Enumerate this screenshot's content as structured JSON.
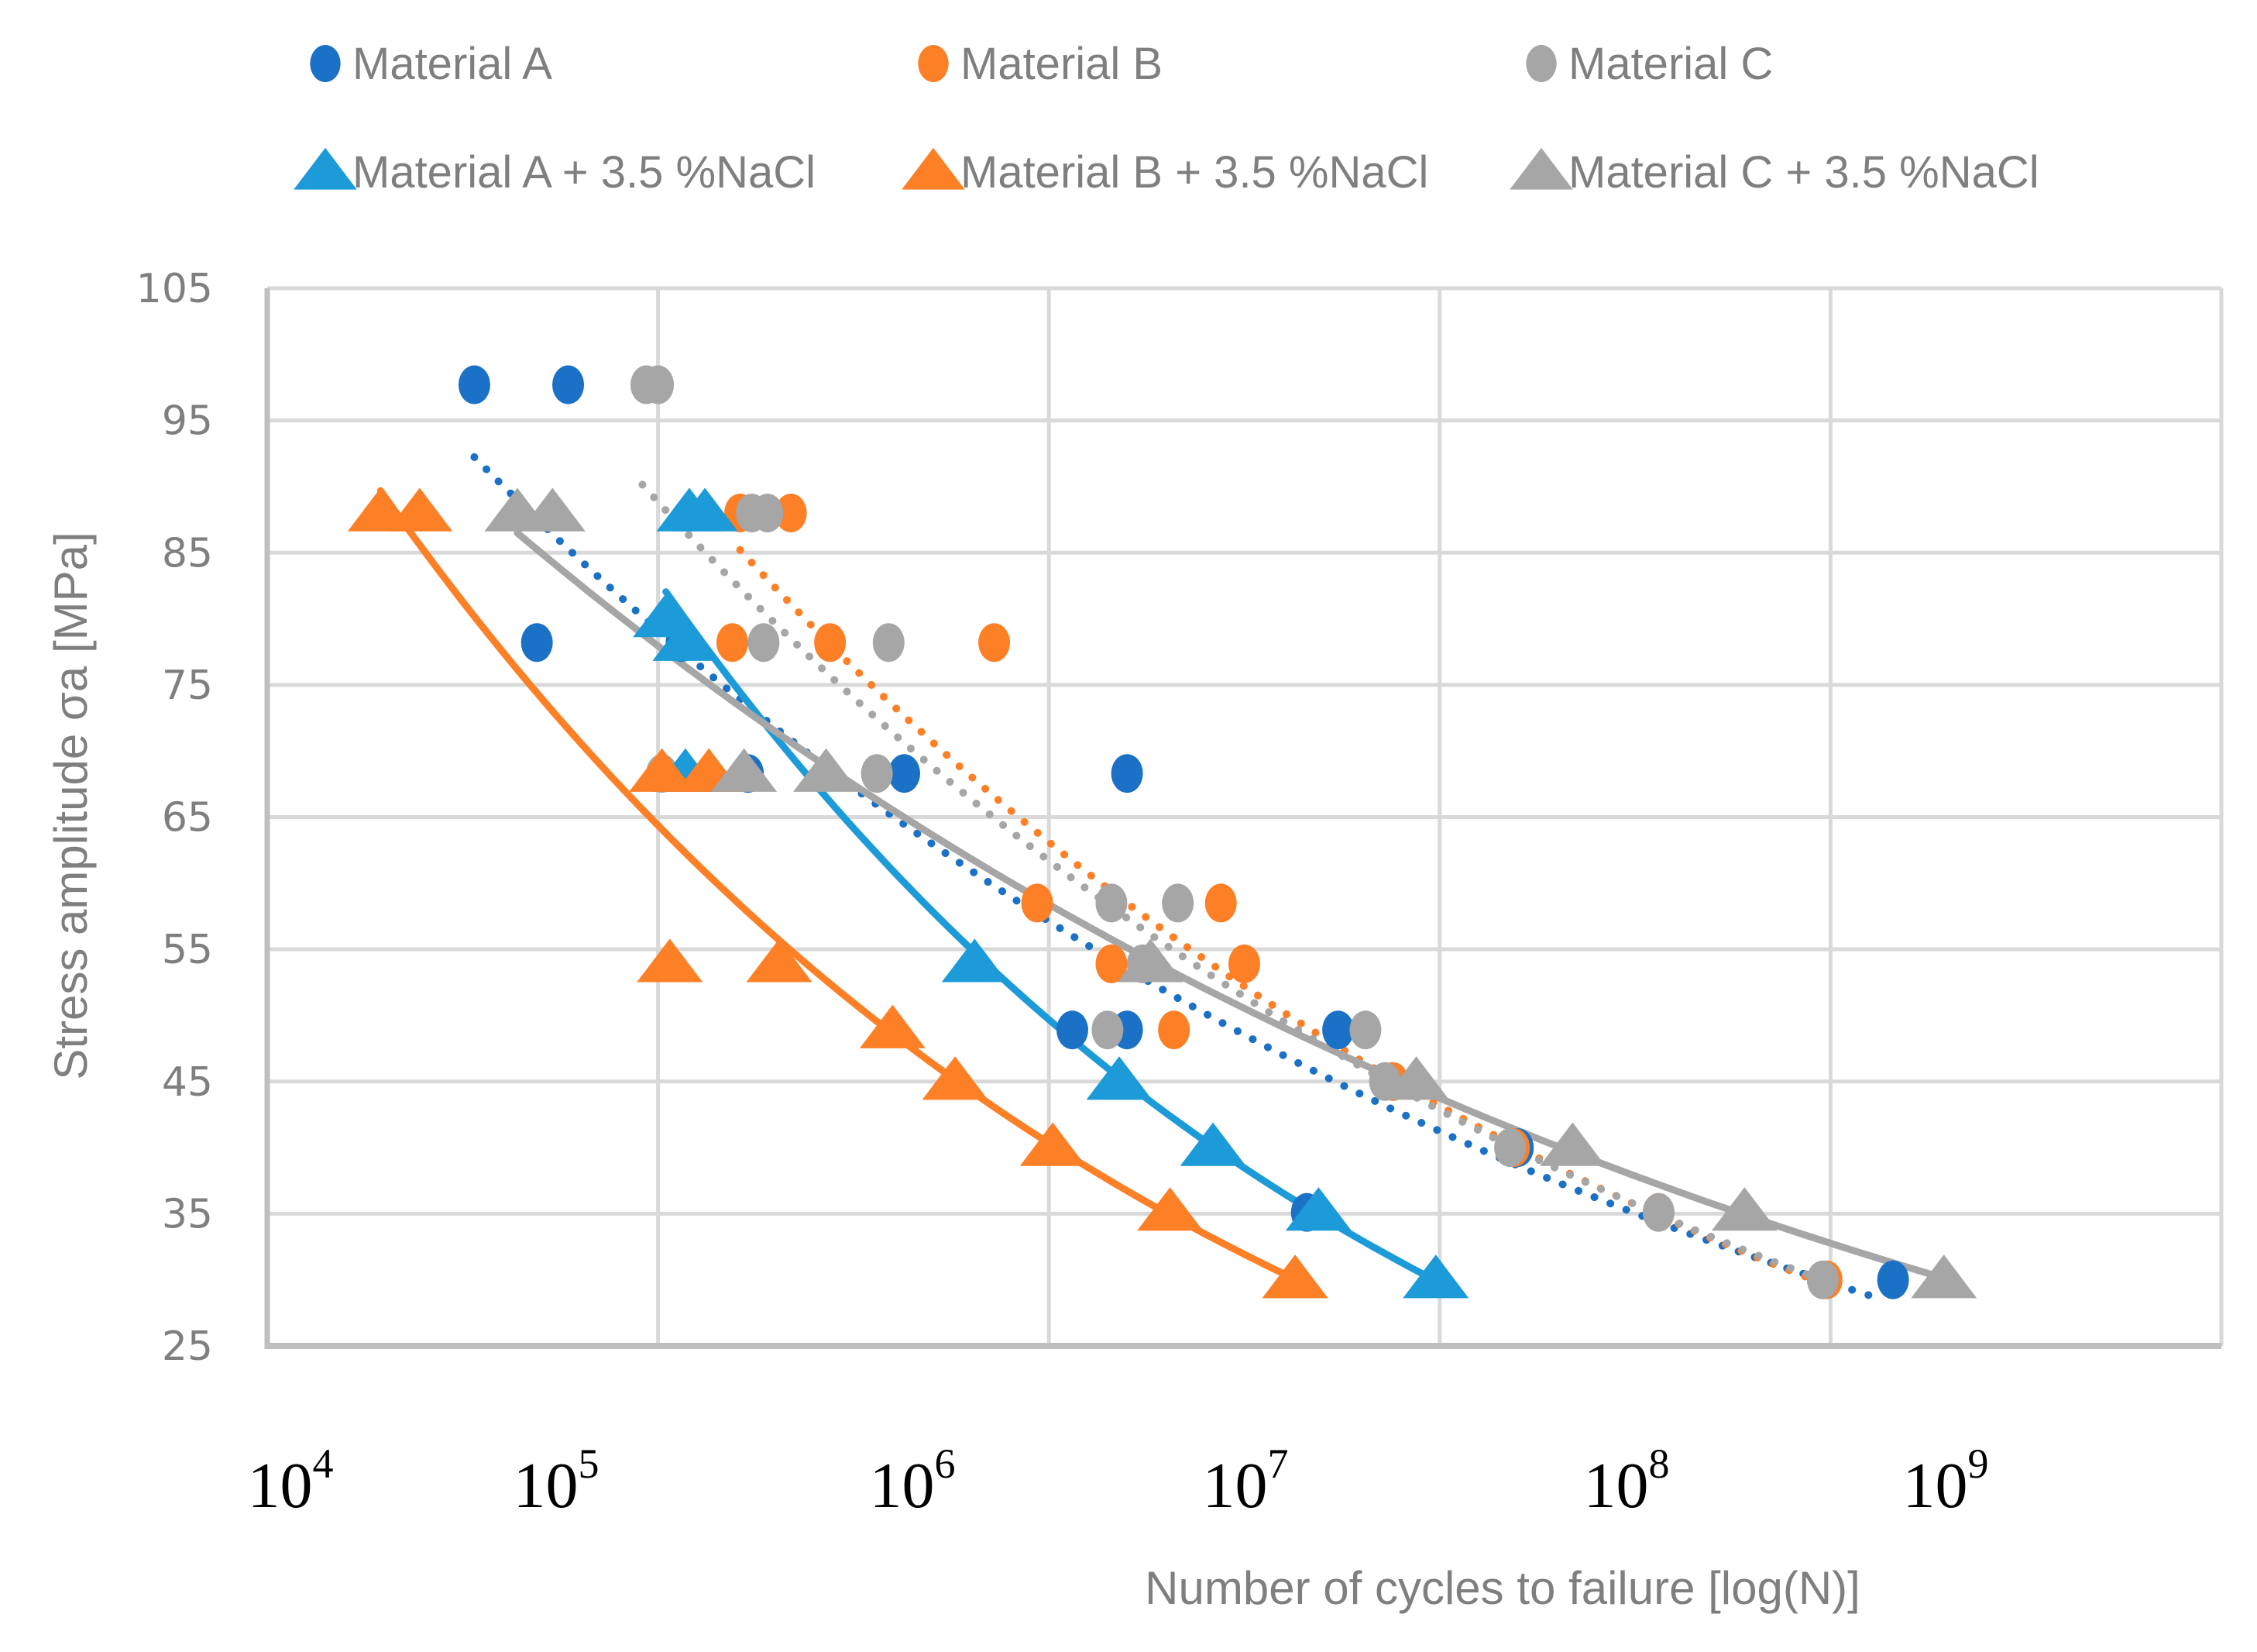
{
  "chart_data": {
    "type": "scatter",
    "title": "",
    "xlabel": "Number of cycles to failure  [log(N)]",
    "ylabel": "Stress amplitude  σa  [MPa]",
    "x_scale": "log10",
    "xlim_log10": [
      4,
      9
    ],
    "ylim": [
      25,
      105
    ],
    "grid": true,
    "legend_position": "top",
    "y_ticks": [
      105,
      95,
      85,
      75,
      65,
      55,
      45,
      35,
      25
    ],
    "x_tick_labels": [
      {
        "base": "10",
        "exp": "4"
      },
      {
        "base": "10",
        "exp": "5"
      },
      {
        "base": "10",
        "exp": "6"
      },
      {
        "base": "10",
        "exp": "7"
      },
      {
        "base": "10",
        "exp": "8"
      },
      {
        "base": "10",
        "exp": "9"
      }
    ],
    "series": [
      {
        "name": "Material A",
        "marker": "circle",
        "color": "#1a71c5",
        "trendline": "dotted",
        "points_log10N_stress": [
          [
            4.53,
            97.7
          ],
          [
            4.77,
            97.7
          ],
          [
            4.69,
            78.2
          ],
          [
            5.06,
            78.2
          ],
          [
            5.23,
            68.3
          ],
          [
            5.63,
            68.3
          ],
          [
            6.2,
            68.3
          ],
          [
            6.06,
            48.9
          ],
          [
            6.2,
            48.9
          ],
          [
            6.74,
            48.9
          ],
          [
            6.66,
            35.1
          ],
          [
            7.2,
            40.0
          ],
          [
            8.16,
            30.0
          ]
        ],
        "trend_range_log10N": [
          4.53,
          8.13
        ]
      },
      {
        "name": "Material B",
        "marker": "circle",
        "color": "#fd7f26",
        "trendline": "dotted",
        "points_log10N_stress": [
          [
            5.21,
            88.0
          ],
          [
            5.34,
            88.0
          ],
          [
            5.19,
            78.2
          ],
          [
            5.44,
            78.2
          ],
          [
            5.86,
            78.2
          ],
          [
            5.97,
            58.5
          ],
          [
            6.44,
            58.5
          ],
          [
            6.16,
            53.9
          ],
          [
            6.5,
            53.9
          ],
          [
            6.32,
            48.9
          ],
          [
            6.88,
            45.0
          ],
          [
            7.19,
            40.0
          ],
          [
            7.56,
            35.1
          ],
          [
            7.99,
            30.0
          ]
        ],
        "trend_range_log10N": [
          5.21,
          7.99
        ]
      },
      {
        "name": "Material C",
        "marker": "circle",
        "color": "#a6a6a6",
        "trendline": "dotted",
        "points_log10N_stress": [
          [
            4.97,
            97.7
          ],
          [
            5.0,
            97.7
          ],
          [
            5.24,
            88.0
          ],
          [
            5.28,
            88.0
          ],
          [
            5.27,
            78.2
          ],
          [
            5.59,
            78.2
          ],
          [
            5.01,
            68.3
          ],
          [
            5.56,
            68.3
          ],
          [
            6.16,
            58.5
          ],
          [
            6.33,
            58.5
          ],
          [
            6.24,
            53.9
          ],
          [
            6.15,
            48.9
          ],
          [
            6.81,
            48.9
          ],
          [
            6.86,
            45.0
          ],
          [
            7.18,
            40.0
          ],
          [
            7.56,
            35.1
          ],
          [
            7.98,
            30.0
          ]
        ],
        "trend_range_log10N": [
          4.96,
          7.98
        ]
      },
      {
        "name": "Material A + 3.5 %NaCl",
        "marker": "triangle",
        "color": "#1d9bd8",
        "trendline": "solid",
        "points_log10N_stress": [
          [
            5.08,
            88.0
          ],
          [
            5.12,
            88.0
          ],
          [
            5.02,
            80.0
          ],
          [
            5.07,
            78.2
          ],
          [
            5.07,
            68.3
          ],
          [
            5.81,
            53.9
          ],
          [
            6.18,
            45.0
          ],
          [
            6.42,
            40.0
          ],
          [
            6.69,
            35.1
          ],
          [
            6.99,
            30.0
          ]
        ],
        "trend_range_log10N": [
          5.02,
          6.99
        ]
      },
      {
        "name": "Material B + 3.5 %NaCl",
        "marker": "triangle",
        "color": "#fd7f26",
        "trendline": "solid",
        "points_log10N_stress": [
          [
            4.29,
            88.0
          ],
          [
            4.39,
            88.0
          ],
          [
            5.01,
            68.3
          ],
          [
            5.13,
            68.3
          ],
          [
            5.03,
            53.9
          ],
          [
            5.31,
            53.9
          ],
          [
            5.6,
            48.9
          ],
          [
            5.76,
            45.0
          ],
          [
            6.01,
            40.0
          ],
          [
            6.31,
            35.1
          ],
          [
            6.63,
            30.0
          ]
        ],
        "trend_range_log10N": [
          4.29,
          6.63
        ]
      },
      {
        "name": "Material C + 3.5 %NaCl",
        "marker": "triangle",
        "color": "#a6a6a6",
        "trendline": "solid",
        "points_log10N_stress": [
          [
            4.64,
            88.0
          ],
          [
            4.73,
            88.0
          ],
          [
            5.22,
            68.3
          ],
          [
            5.43,
            68.3
          ],
          [
            6.26,
            53.9
          ],
          [
            6.94,
            45.0
          ],
          [
            7.34,
            40.0
          ],
          [
            7.78,
            35.1
          ],
          [
            8.29,
            30.0
          ]
        ],
        "trend_range_log10N": [
          4.64,
          8.29
        ]
      }
    ]
  },
  "legend": {
    "items": [
      {
        "label": "Material A",
        "marker": "circle",
        "color": "#1a71c5"
      },
      {
        "label": "Material B",
        "marker": "circle",
        "color": "#fd7f26"
      },
      {
        "label": "Material C",
        "marker": "circle",
        "color": "#a6a6a6"
      },
      {
        "label": "Material A + 3.5 %NaCl",
        "marker": "triangle",
        "color": "#1d9bd8"
      },
      {
        "label": "Material B + 3.5 %NaCl",
        "marker": "triangle",
        "color": "#fd7f26"
      },
      {
        "label": "Material C + 3.5 %NaCl",
        "marker": "triangle",
        "color": "#a6a6a6"
      }
    ]
  },
  "colors": {
    "grid": "#d9d9d9",
    "axis": "#bfbfbf",
    "label_text": "#7f7f7f",
    "x_tick_text": "#000000"
  }
}
